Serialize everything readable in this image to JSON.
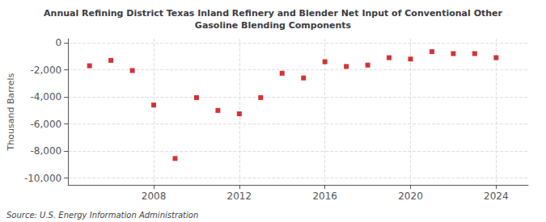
{
  "chart_data": {
    "type": "scatter",
    "title": "Annual Refining District Texas Inland Refinery and Blender Net Input of Conventional Other\nGasoline Blending Components",
    "ylabel": "Thousand Barrels",
    "annotation": "Source: U.S. Energy Information Administration",
    "x": [
      2005,
      2006,
      2007,
      2008,
      2009,
      2010,
      2011,
      2012,
      2013,
      2014,
      2015,
      2016,
      2017,
      2018,
      2019,
      2020,
      2021,
      2022,
      2023,
      2024
    ],
    "values": [
      -1700,
      -1300,
      -2050,
      -4600,
      -8550,
      -4050,
      -5000,
      -5250,
      -4050,
      -2250,
      -2600,
      -1400,
      -1750,
      -1650,
      -1100,
      -1200,
      -650,
      -800,
      -800,
      -1100
    ],
    "color": "#cc0000",
    "marker": "square",
    "xlim": [
      2004.0,
      2025.5
    ],
    "xticks": [
      2008,
      2012,
      2016,
      2020,
      2024
    ],
    "ylim": [
      -10500,
      300
    ],
    "yticks": [
      0,
      {
        "value": -2000,
        "label": "-2,000"
      },
      {
        "value": -4000,
        "label": "-4,000"
      },
      {
        "value": -6000,
        "label": "-6,000"
      },
      {
        "value": -8000,
        "label": "-8,000"
      },
      {
        "value": -10000,
        "label": "-10,000"
      }
    ],
    "grid": true
  }
}
